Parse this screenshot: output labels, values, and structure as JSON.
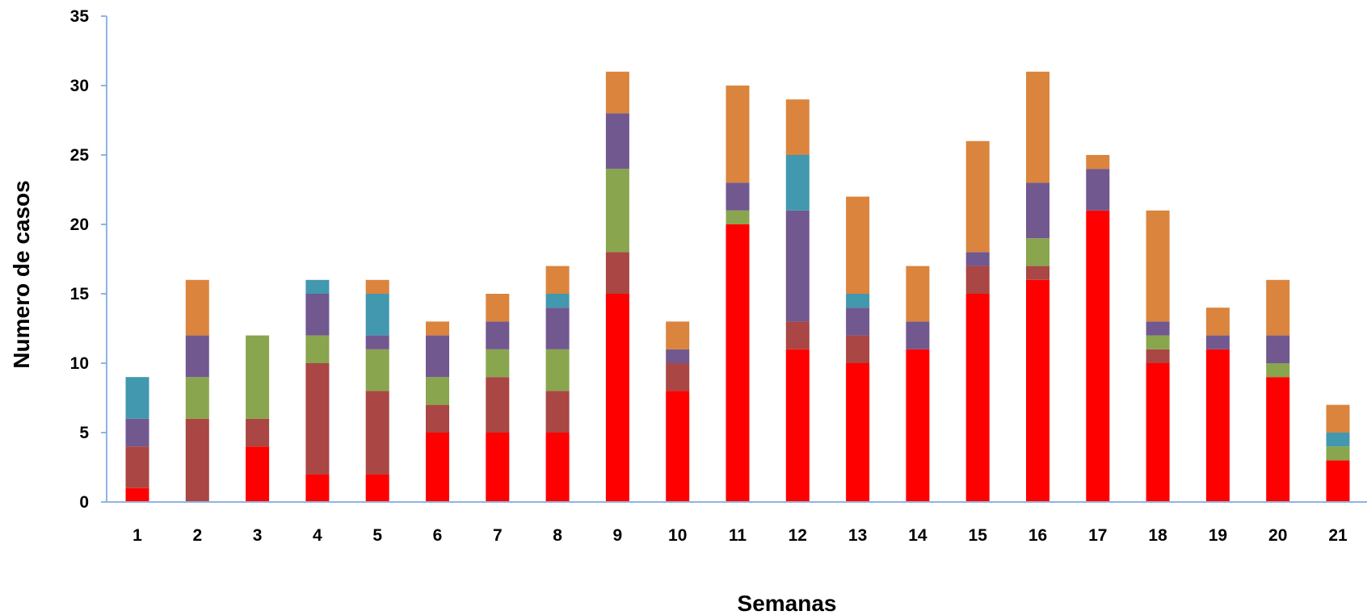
{
  "chart_data": {
    "type": "bar",
    "stacked": true,
    "title": "",
    "xlabel": "Semanas",
    "ylabel": "Numero de casos",
    "ylim": [
      0,
      35
    ],
    "yticks": [
      0,
      5,
      10,
      15,
      20,
      25,
      30,
      35
    ],
    "grid": false,
    "legend": "none",
    "categories": [
      "1",
      "2",
      "3",
      "4",
      "5",
      "6",
      "7",
      "8",
      "9",
      "10",
      "11",
      "12",
      "13",
      "14",
      "15",
      "16",
      "17",
      "18",
      "19",
      "20",
      "21"
    ],
    "series": [
      {
        "color": "#ff0000",
        "values": [
          1,
          0,
          4,
          2,
          2,
          5,
          5,
          5,
          15,
          8,
          20,
          11,
          10,
          11,
          15,
          16,
          21,
          10,
          11,
          9,
          3
        ]
      },
      {
        "color": "#aa4643",
        "values": [
          3,
          6,
          2,
          8,
          6,
          2,
          4,
          3,
          3,
          2,
          0,
          2,
          2,
          0,
          2,
          1,
          0,
          1,
          0,
          0,
          0
        ]
      },
      {
        "color": "#89a54e",
        "values": [
          0,
          3,
          6,
          2,
          3,
          2,
          2,
          3,
          6,
          0,
          1,
          0,
          0,
          0,
          0,
          2,
          0,
          1,
          0,
          1,
          1
        ]
      },
      {
        "color": "#71588f",
        "values": [
          2,
          3,
          0,
          3,
          1,
          3,
          2,
          3,
          4,
          1,
          2,
          8,
          2,
          2,
          1,
          4,
          3,
          1,
          1,
          2,
          0
        ]
      },
      {
        "color": "#4198af",
        "values": [
          3,
          0,
          0,
          1,
          3,
          0,
          0,
          1,
          0,
          0,
          0,
          4,
          1,
          0,
          0,
          0,
          0,
          0,
          0,
          0,
          1
        ]
      },
      {
        "color": "#db843d",
        "values": [
          0,
          4,
          0,
          0,
          1,
          1,
          2,
          2,
          3,
          2,
          7,
          4,
          7,
          4,
          8,
          8,
          1,
          8,
          2,
          4,
          2
        ]
      }
    ],
    "axis_color": "#8eb4e3"
  }
}
